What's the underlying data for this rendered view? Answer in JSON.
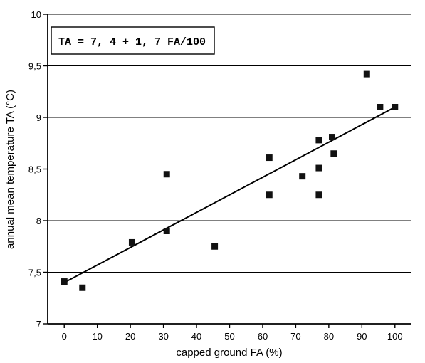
{
  "chart_data": {
    "type": "scatter",
    "title": "",
    "xlabel": "capped ground FA (%)",
    "ylabel": "annual mean temperature TA (°C)",
    "xlim": [
      -5,
      105
    ],
    "ylim": [
      7,
      10
    ],
    "x_ticks": [
      "0",
      "10",
      "20",
      "30",
      "40",
      "50",
      "60",
      "70",
      "80",
      "90",
      "100"
    ],
    "y_ticks": [
      "7",
      "7,5",
      "8",
      "8,5",
      "9",
      "9,5",
      "10"
    ],
    "y_tick_values": [
      7,
      7.5,
      8,
      8.5,
      9,
      9.5,
      10
    ],
    "grid": "horizontal",
    "annotation": "TA = 7, 4 + 1, 7  FA/100",
    "series": [
      {
        "points": [
          {
            "x": 0,
            "y": 7.41
          },
          {
            "x": 5.5,
            "y": 7.35
          },
          {
            "x": 20.5,
            "y": 7.79
          },
          {
            "x": 31,
            "y": 7.9
          },
          {
            "x": 31,
            "y": 8.45
          },
          {
            "x": 45.5,
            "y": 7.75
          },
          {
            "x": 62,
            "y": 8.25
          },
          {
            "x": 62,
            "y": 8.61
          },
          {
            "x": 72,
            "y": 8.43
          },
          {
            "x": 77,
            "y": 8.25
          },
          {
            "x": 77,
            "y": 8.51
          },
          {
            "x": 77,
            "y": 8.78
          },
          {
            "x": 81,
            "y": 8.81
          },
          {
            "x": 81.5,
            "y": 8.65
          },
          {
            "x": 91.5,
            "y": 9.42
          },
          {
            "x": 95.5,
            "y": 9.1
          },
          {
            "x": 100,
            "y": 9.1
          }
        ]
      }
    ],
    "fit_line": {
      "intercept": 7.4,
      "slope_per_100": 1.7,
      "x_range": [
        0,
        100
      ]
    },
    "colors": {
      "marker": "#111111",
      "line": "#000000",
      "grid": "#000000"
    }
  }
}
